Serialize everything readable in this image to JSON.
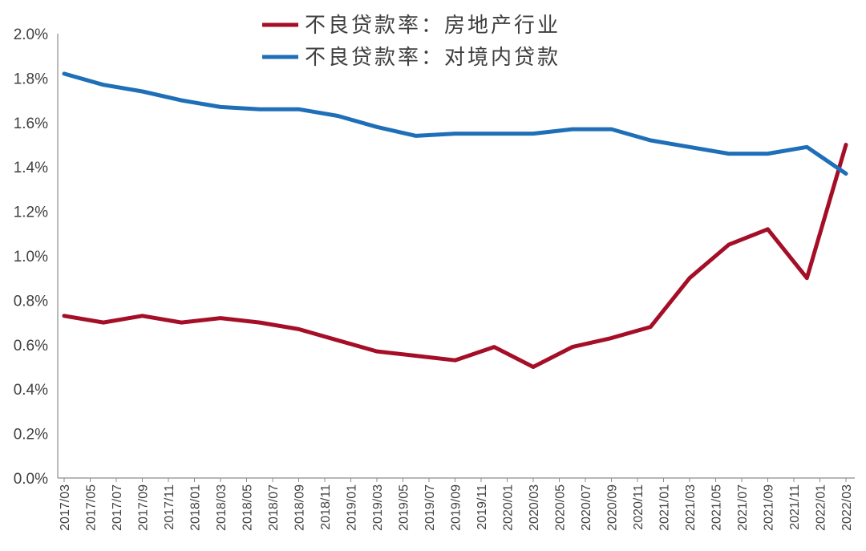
{
  "chart_data": {
    "type": "line",
    "title": "",
    "xlabel": "",
    "ylabel": "",
    "ylim": [
      0,
      2.0
    ],
    "y_tick_labels": [
      "0.0%",
      "0.2%",
      "0.4%",
      "0.6%",
      "0.8%",
      "1.0%",
      "1.2%",
      "1.4%",
      "1.6%",
      "1.8%",
      "2.0%"
    ],
    "y_tick_values": [
      0,
      0.2,
      0.4,
      0.6,
      0.8,
      1.0,
      1.2,
      1.4,
      1.6,
      1.8,
      2.0
    ],
    "x_tick_labels": [
      "2017/03",
      "2017/05",
      "2017/07",
      "2017/09",
      "2017/11",
      "2018/01",
      "2018/03",
      "2018/05",
      "2018/07",
      "2018/09",
      "2018/11",
      "2019/01",
      "2019/03",
      "2019/05",
      "2019/07",
      "2019/09",
      "2019/11",
      "2020/01",
      "2020/03",
      "2020/05",
      "2020/07",
      "2020/09",
      "2020/11",
      "2021/01",
      "2021/03",
      "2021/05",
      "2021/07",
      "2021/09",
      "2021/11",
      "2022/01",
      "2022/03"
    ],
    "x": [
      "2017/03",
      "2017/06",
      "2017/09",
      "2017/12",
      "2018/03",
      "2018/06",
      "2018/09",
      "2018/12",
      "2019/03",
      "2019/06",
      "2019/09",
      "2019/12",
      "2020/03",
      "2020/06",
      "2020/09",
      "2020/12",
      "2021/03",
      "2021/06",
      "2021/09",
      "2021/12",
      "2022/03"
    ],
    "legend_position": "top-center",
    "grid": false,
    "series": [
      {
        "name": "不良贷款率：房地产行业",
        "color": "#A50E27",
        "values": [
          0.73,
          0.7,
          0.73,
          0.7,
          0.72,
          0.7,
          0.67,
          0.62,
          0.57,
          0.55,
          0.53,
          0.59,
          0.5,
          0.59,
          0.63,
          0.68,
          0.9,
          1.05,
          1.12,
          0.9,
          1.5
        ]
      },
      {
        "name": "不良贷款率：对境内贷款",
        "color": "#1F6FB8",
        "values": [
          1.82,
          1.77,
          1.74,
          1.7,
          1.67,
          1.66,
          1.66,
          1.63,
          1.58,
          1.54,
          1.55,
          1.55,
          1.55,
          1.57,
          1.57,
          1.52,
          1.49,
          1.46,
          1.46,
          1.49,
          1.37
        ]
      }
    ]
  }
}
